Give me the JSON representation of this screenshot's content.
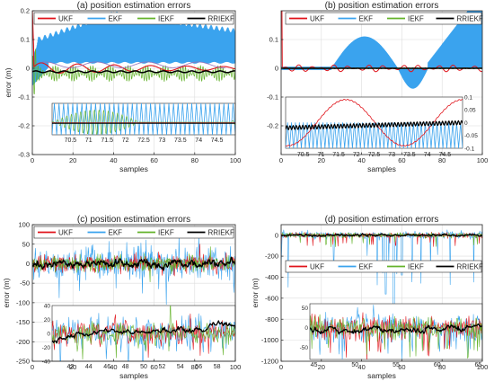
{
  "colors": {
    "UKF": "#e0141b",
    "EKF": "#3aa3ee",
    "IEKF": "#64b32b",
    "RRIEKF": "#000000",
    "axis": "#262626",
    "grid": "#dcdcdc"
  },
  "chart_data": [
    {
      "id": "a",
      "type": "line",
      "title": "(a) position estimation errors",
      "xlabel": "samples",
      "ylabel": "error (m)",
      "xlim": [
        0,
        100
      ],
      "ylim": [
        -0.3,
        0.2
      ],
      "xticks": [
        0,
        20,
        40,
        60,
        80,
        100
      ],
      "yticks": [
        -0.3,
        -0.2,
        -0.1,
        0,
        0.1,
        0.2
      ],
      "ytick_labels": [
        "-0.3",
        "-0.2",
        "-0.1",
        "0",
        "0.1",
        "0.2"
      ],
      "grid": true,
      "legend": {
        "position": "top",
        "entries": [
          "UKF",
          "EKF",
          "IEKF",
          "RRIEKF"
        ]
      },
      "series_summary": {
        "EKF": {
          "envelope_top_at": [
            [
              0,
              0.1
            ],
            [
              10,
              0.12
            ],
            [
              40,
              0.19
            ],
            [
              100,
              0.14
            ]
          ],
          "envelope_bottom_at": [
            [
              0,
              -0.05
            ],
            [
              20,
              0.02
            ],
            [
              100,
              0.02
            ]
          ]
        },
        "UKF": {
          "initial_spike": 0.2,
          "level": 0.0
        },
        "IEKF": {
          "oscillation_amplitude": 0.03
        },
        "RRIEKF": {
          "level": -0.01
        }
      },
      "inset": {
        "xlim": [
          70,
          75
        ],
        "ylim": [
          -0.05,
          0.05
        ],
        "xticks": [
          70.5,
          71,
          71.5,
          72,
          72.5,
          73,
          73.5,
          74,
          74.5
        ],
        "xtick_labels": [
          "70.5",
          "71",
          "71.5",
          "72",
          "72.5",
          "73",
          "73.5",
          "74",
          "74.5"
        ]
      }
    },
    {
      "id": "b",
      "type": "line",
      "title": "(b) position estimation errors",
      "xlabel": "samples",
      "ylabel": "",
      "xlim": [
        0,
        100
      ],
      "ylim": [
        -0.3,
        0.2
      ],
      "xticks": [
        0,
        20,
        40,
        60,
        80,
        100
      ],
      "yticks": [
        -0.2,
        -0.1,
        0,
        0.1
      ],
      "ytick_labels": [
        "-0.2",
        "-0.1",
        "0",
        "0.1"
      ],
      "grid": true,
      "legend": {
        "position": "top",
        "entries": [
          "UKF",
          "EKF",
          "IEKF",
          "RRIEKF"
        ]
      },
      "inset": {
        "xlim": [
          70,
          75
        ],
        "ylim": [
          -0.1,
          0.1
        ],
        "xticks": [
          70.5,
          71,
          71.5,
          72,
          72.5,
          73,
          73.5,
          74,
          74.5
        ],
        "xtick_labels": [
          "70.5",
          "71",
          "71.5",
          "72",
          "72.5",
          "73",
          "73.5",
          "74",
          "74.5"
        ],
        "yticks": [
          -0.1,
          -0.05,
          0,
          0.05,
          0.1
        ],
        "ytick_labels": [
          "-0.1",
          "-0.05",
          "0",
          "0.05",
          "0.1"
        ]
      }
    },
    {
      "id": "c",
      "type": "line",
      "title": "(c) position estimation errors",
      "xlabel": "samples",
      "ylabel": "error (m)",
      "xlim": [
        0,
        100
      ],
      "ylim": [
        -250,
        100
      ],
      "xticks": [
        0,
        20,
        40,
        60,
        80,
        100
      ],
      "yticks": [
        -250,
        -200,
        -150,
        -100,
        -50,
        0,
        50,
        100
      ],
      "ytick_labels": [
        "-250",
        "-200",
        "-150",
        "-100",
        "-50",
        "0",
        "50",
        "100"
      ],
      "grid": true,
      "legend": {
        "position": "top",
        "entries": [
          "UKF",
          "EKF",
          "IEKF",
          "RRIEKF"
        ]
      },
      "inset": {
        "xlim": [
          40,
          60
        ],
        "ylim": [
          -40,
          40
        ],
        "xticks": [
          42,
          44,
          46,
          48,
          50,
          52,
          54,
          56,
          58
        ],
        "xtick_labels": [
          "42",
          "44",
          "46",
          "48",
          "50",
          "52",
          "54",
          "56",
          "58"
        ],
        "yticks": [
          -40,
          -20,
          0,
          20,
          40
        ],
        "ytick_labels": [
          "-40",
          "-20",
          "0",
          "20",
          "40"
        ]
      }
    },
    {
      "id": "d",
      "type": "line",
      "title": "(d) position estimation errors",
      "xlabel": "samples",
      "ylabel": "error (m)",
      "xlim": [
        0,
        100
      ],
      "ylim": [
        -1200,
        100
      ],
      "xticks": [
        0,
        20,
        40,
        60,
        80,
        100
      ],
      "yticks": [
        -1200,
        -1000,
        -800,
        -600,
        -400,
        -200,
        0
      ],
      "ytick_labels": [
        "-1200",
        "-1000",
        "-800",
        "-600",
        "-400",
        "-200",
        "0"
      ],
      "grid": true,
      "legend": {
        "position": "middle",
        "entries": [
          "UKF",
          "EKF",
          "IEKF",
          "RRIEKF"
        ]
      },
      "inset": {
        "xlim": [
          44.5,
          65.5
        ],
        "ylim": [
          -80,
          60
        ],
        "xticks": [
          45,
          50,
          55,
          60,
          65
        ],
        "xtick_labels": [
          "45",
          "50",
          "55",
          "60",
          "65"
        ],
        "yticks": [
          -50,
          0,
          50
        ],
        "ytick_labels": [
          "-50",
          "0",
          "50"
        ]
      }
    }
  ]
}
